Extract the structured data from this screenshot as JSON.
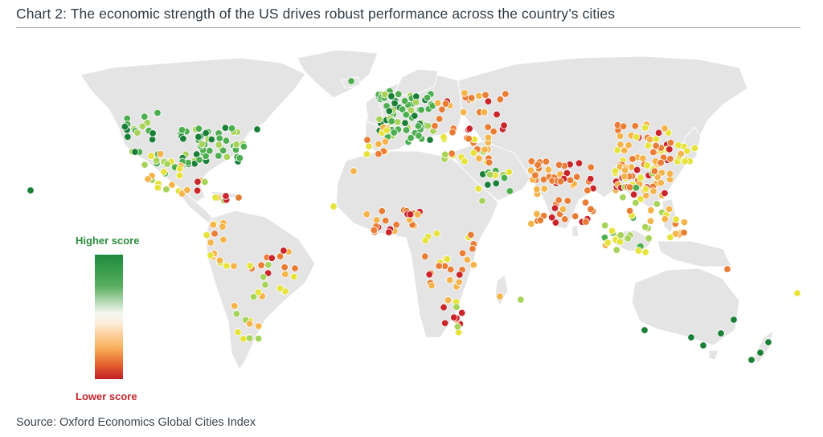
{
  "title": "Chart 2: The economic strength of the US drives robust performance across the country’s cities",
  "legend": {
    "high_label": "Higher score",
    "low_label": "Lower score",
    "high_color": "#1e8a3e",
    "low_color": "#c0202a"
  },
  "source": "Source: Oxford Economics Global Cities Index",
  "colors": {
    "land": "#e4e4e4",
    "background": "#ffffff"
  },
  "score_scale": [
    "#1a7f37",
    "#4cae4f",
    "#a7d35a",
    "#e6e33c",
    "#f5b44a",
    "#ea7d35",
    "#c9252b"
  ]
}
